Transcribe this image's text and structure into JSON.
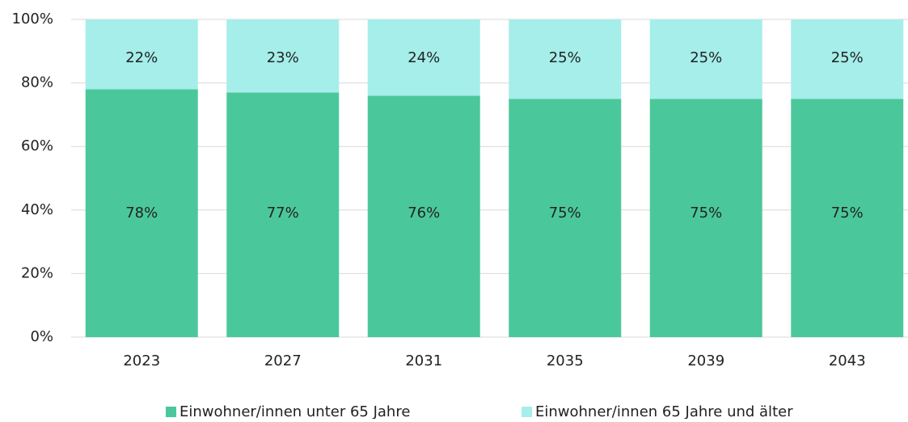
{
  "chart_data": {
    "type": "stacked_bar",
    "categories": [
      "2023",
      "2027",
      "2031",
      "2035",
      "2039",
      "2043"
    ],
    "series": [
      {
        "name": "Einwohner/innen unter 65 Jahre",
        "color": "#4bc89b",
        "values": [
          78,
          77,
          76,
          75,
          75,
          75
        ],
        "value_labels": [
          "78%",
          "77%",
          "76%",
          "75%",
          "75%",
          "75%"
        ]
      },
      {
        "name": "Einwohner/innen 65 Jahre und älter",
        "color": "#a5eeea",
        "values": [
          22,
          23,
          24,
          25,
          25,
          25
        ],
        "value_labels": [
          "22%",
          "23%",
          "24%",
          "25%",
          "25%",
          "25%"
        ]
      }
    ],
    "ylim": [
      0,
      100
    ],
    "yticks": [
      {
        "value": 0,
        "label": "0%"
      },
      {
        "value": 20,
        "label": "20%"
      },
      {
        "value": 40,
        "label": "40%"
      },
      {
        "value": 60,
        "label": "60%"
      },
      {
        "value": 80,
        "label": "80%"
      },
      {
        "value": 100,
        "label": "100%"
      }
    ],
    "grid": true,
    "legend": "bottom"
  }
}
